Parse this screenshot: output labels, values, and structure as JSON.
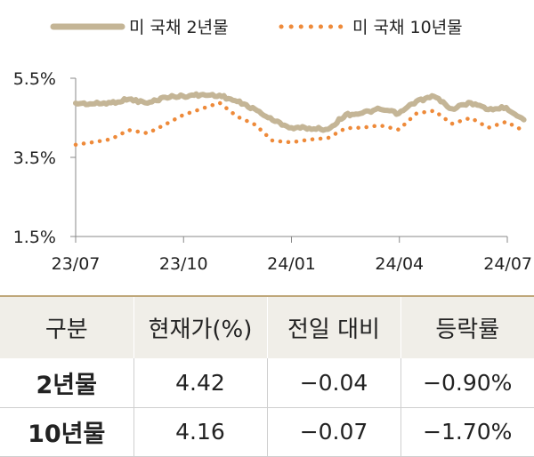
{
  "chart_data": {
    "type": "line",
    "x_ticks": [
      "23/07",
      "23/10",
      "24/01",
      "24/04",
      "24/07"
    ],
    "y_ticks": [
      "5.5%",
      "3.5%",
      "1.5%"
    ],
    "ylim": [
      1.5,
      5.5
    ],
    "legend_position": "top",
    "series": [
      {
        "name": "미 국채 2년물",
        "style": "solid",
        "color": "#c4b596",
        "points": [
          [
            "2023-07-01",
            4.87
          ],
          [
            "2023-07-15",
            4.85
          ],
          [
            "2023-07-31",
            4.88
          ],
          [
            "2023-08-15",
            4.97
          ],
          [
            "2023-08-31",
            4.87
          ],
          [
            "2023-09-15",
            5.02
          ],
          [
            "2023-09-30",
            5.05
          ],
          [
            "2023-10-15",
            5.08
          ],
          [
            "2023-10-31",
            5.07
          ],
          [
            "2023-11-15",
            4.91
          ],
          [
            "2023-11-30",
            4.72
          ],
          [
            "2023-12-15",
            4.44
          ],
          [
            "2023-12-31",
            4.25
          ],
          [
            "2024-01-15",
            4.24
          ],
          [
            "2024-01-31",
            4.21
          ],
          [
            "2024-02-15",
            4.58
          ],
          [
            "2024-02-29",
            4.62
          ],
          [
            "2024-03-15",
            4.72
          ],
          [
            "2024-03-31",
            4.61
          ],
          [
            "2024-04-15",
            4.92
          ],
          [
            "2024-04-30",
            5.04
          ],
          [
            "2024-05-15",
            4.73
          ],
          [
            "2024-05-31",
            4.88
          ],
          [
            "2024-06-15",
            4.71
          ],
          [
            "2024-06-30",
            4.76
          ],
          [
            "2024-07-15",
            4.45
          ]
        ]
      },
      {
        "name": "미 국채 10년물",
        "style": "dotted",
        "color": "#ee8a3a",
        "points": [
          [
            "2023-07-01",
            3.82
          ],
          [
            "2023-07-15",
            3.88
          ],
          [
            "2023-07-31",
            3.96
          ],
          [
            "2023-08-15",
            4.19
          ],
          [
            "2023-08-31",
            4.11
          ],
          [
            "2023-09-15",
            4.33
          ],
          [
            "2023-09-30",
            4.57
          ],
          [
            "2023-10-15",
            4.72
          ],
          [
            "2023-10-31",
            4.88
          ],
          [
            "2023-11-15",
            4.53
          ],
          [
            "2023-11-30",
            4.33
          ],
          [
            "2023-12-15",
            3.92
          ],
          [
            "2023-12-31",
            3.88
          ],
          [
            "2024-01-15",
            3.95
          ],
          [
            "2024-01-31",
            3.99
          ],
          [
            "2024-02-15",
            4.24
          ],
          [
            "2024-02-29",
            4.25
          ],
          [
            "2024-03-15",
            4.31
          ],
          [
            "2024-03-31",
            4.2
          ],
          [
            "2024-04-15",
            4.61
          ],
          [
            "2024-04-30",
            4.68
          ],
          [
            "2024-05-15",
            4.35
          ],
          [
            "2024-05-31",
            4.5
          ],
          [
            "2024-06-15",
            4.25
          ],
          [
            "2024-06-30",
            4.4
          ],
          [
            "2024-07-15",
            4.17
          ]
        ]
      }
    ]
  },
  "table": {
    "headers": [
      "구분",
      "현재가(%)",
      "전일 대비",
      "등락률"
    ],
    "rows": [
      [
        "2년물",
        "4.42",
        "−0.04",
        "−0.90%"
      ],
      [
        "10년물",
        "4.16",
        "−0.07",
        "−1.70%"
      ]
    ]
  }
}
